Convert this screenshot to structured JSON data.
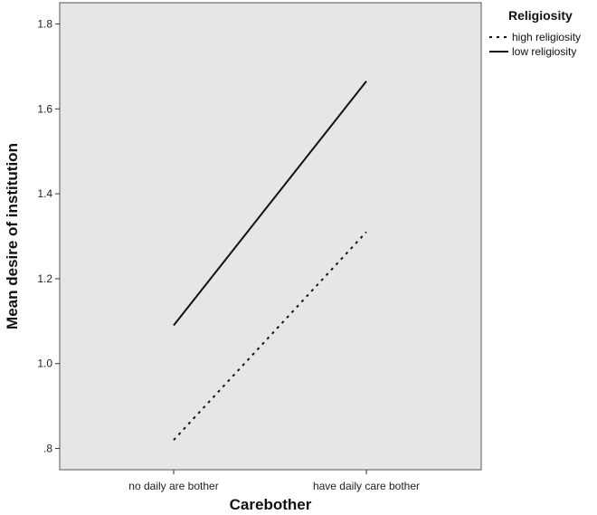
{
  "chart_data": {
    "type": "line",
    "categories": [
      "no daily are bother",
      "have daily care bother"
    ],
    "series": [
      {
        "name": "high religiosity",
        "values": [
          0.82,
          1.31
        ],
        "style": "dotted"
      },
      {
        "name": "low religiosity",
        "values": [
          1.09,
          1.665
        ],
        "style": "solid"
      }
    ],
    "xlabel": "Carebother",
    "ylabel": "Mean desire of institution",
    "ylim": [
      0.75,
      1.85
    ],
    "yticks": [
      0.8,
      1.0,
      1.2,
      1.4,
      1.6,
      1.8
    ],
    "ytick_labels": [
      ".8",
      "1.0",
      "1.2",
      "1.4",
      "1.6",
      "1.8"
    ],
    "legend_title": "Religiosity",
    "legend_position": "top-right",
    "grid": false,
    "plot_background": "#e6e6e6",
    "line_color": "#111111"
  }
}
